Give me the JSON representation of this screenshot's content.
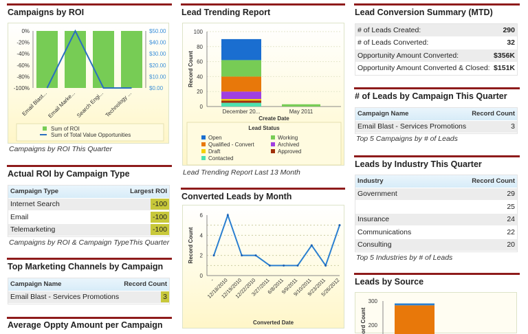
{
  "col1": {
    "roi_title": "Campaigns by ROI",
    "roi_caption": "Campaigns by ROI This Quarter",
    "actual_title": "Actual ROI by Campaign Type",
    "actual_table": {
      "headers": [
        "Campaign Type",
        "Largest ROI"
      ],
      "rows": [
        [
          "Internet Search",
          "-100"
        ],
        [
          "Email",
          "-100"
        ],
        [
          "Telemarketing",
          "-100"
        ]
      ]
    },
    "actual_caption": "Campaigns by ROI & Campaign TypeThis Quarter",
    "channels_title": "Top Marketing Channels by Campaign",
    "channels_table": {
      "headers": [
        "Campaign Name",
        "Record Count"
      ],
      "rows": [
        [
          "Email Blast - Services Promotions",
          "3"
        ]
      ]
    },
    "avg_title": "Average Oppty Amount per Campaign"
  },
  "col2": {
    "trend_title": "Lead Trending Report",
    "trend_caption": "Lead Trending Report Last 13 Month",
    "converted_title": "Converted Leads by Month"
  },
  "col3": {
    "summary_title": "Lead Conversion Summary (MTD)",
    "summary_rows": [
      [
        "# of Leads Created:",
        "290"
      ],
      [
        "# of Leads Converted:",
        "32"
      ],
      [
        "Opportunity Amount Converted:",
        "$356K"
      ],
      [
        "Opportunity Amount Converted & Closed:",
        "$151K"
      ]
    ],
    "campaign_title": "# of Leads by Campaign This Quarter",
    "campaign_table": {
      "headers": [
        "Campaign Name",
        "Record Count"
      ],
      "rows": [
        [
          "Email Blast - Services Promotions",
          "3"
        ]
      ]
    },
    "campaign_caption": "Top 5 Campaigns by # of Leads",
    "industry_title": "Leads by Industry This Quarter",
    "industry_table": {
      "headers": [
        "Industry",
        "Record Count"
      ],
      "rows": [
        [
          "Government",
          "29"
        ],
        [
          "",
          "25"
        ],
        [
          "Insurance",
          "24"
        ],
        [
          "Communications",
          "22"
        ],
        [
          "Consulting",
          "20"
        ]
      ]
    },
    "industry_caption": "Top 5 Industries by # of Leads",
    "source_title": "Leads by Source"
  },
  "colors": {
    "rule": "#8e1b1b",
    "green": "#77cc55",
    "blue": "#2a7fd0",
    "orange": "#e8780a"
  },
  "chart_data": [
    {
      "type": "bar",
      "title": "Campaigns by ROI",
      "categories": [
        "Email Blast...",
        "Email Marke...",
        "Search Engi...",
        "Technology ..."
      ],
      "series": [
        {
          "name": "Sum of ROI",
          "kind": "bar",
          "values": [
            -100,
            -100,
            -100,
            -100
          ],
          "color": "#77cc55"
        },
        {
          "name": "Sum of Total Value Opportunities",
          "kind": "line",
          "axis": "right",
          "values": [
            0,
            50,
            0,
            0
          ],
          "color": "#2a6fc0"
        }
      ],
      "ylim": [
        -100,
        0
      ],
      "yticks": [
        "0%",
        "-20%",
        "-40%",
        "-60%",
        "-80%",
        "-100%"
      ],
      "y2lim": [
        0,
        50
      ],
      "y2ticks": [
        "$50.00",
        "$40.00",
        "$30.00",
        "$20.00",
        "$10.00",
        "$0.00"
      ],
      "legend": "bottom"
    },
    {
      "type": "bar",
      "title": "Lead Trending Report",
      "stacked": true,
      "categories": [
        "December 20...",
        "May 2011"
      ],
      "xlabel": "Create Date",
      "ylabel": "Record Count",
      "ylim": [
        0,
        100
      ],
      "yticks": [
        0,
        20,
        40,
        60,
        80,
        100
      ],
      "legend_title": "Lead Status",
      "series": [
        {
          "name": "Contacted",
          "values": [
            5,
            0
          ],
          "color": "#4ee0b0"
        },
        {
          "name": "Approved",
          "values": [
            3,
            0
          ],
          "color": "#a0300a"
        },
        {
          "name": "Draft",
          "values": [
            2,
            0
          ],
          "color": "#f5d000"
        },
        {
          "name": "Archived",
          "values": [
            10,
            0
          ],
          "color": "#a040e0"
        },
        {
          "name": "Qualified - Convert",
          "values": [
            20,
            0
          ],
          "color": "#e8780a"
        },
        {
          "name": "Working",
          "values": [
            22,
            3
          ],
          "color": "#77cc55"
        },
        {
          "name": "Open",
          "values": [
            28,
            0
          ],
          "color": "#1a6ed0"
        }
      ],
      "legend_order": [
        "Open",
        "Working",
        "Qualified - Convert",
        "Archived",
        "Draft",
        "Approved",
        "Contacted"
      ]
    },
    {
      "type": "line",
      "title": "Converted Leads by Month",
      "categories": [
        "-",
        "12/18/2010",
        "12/19/2010",
        "12/22/2010",
        "3/27/2011",
        "6/8/2011",
        "9/9/2011",
        "9/10/2011",
        "9/23/2011",
        "5/26/2012"
      ],
      "values": [
        2,
        6,
        2,
        2,
        1,
        1,
        1,
        3,
        1,
        5
      ],
      "xlabel": "Converted Date",
      "ylabel": "Record Count",
      "ylim": [
        0,
        6
      ],
      "yticks": [
        0,
        2,
        4,
        6
      ]
    },
    {
      "type": "bar",
      "title": "Leads by Source",
      "stacked": true,
      "ylim": [
        0,
        300
      ],
      "yticks": [
        300,
        200
      ],
      "ylabel": "Record Count",
      "series": [
        {
          "name": "orange",
          "values": [
            282
          ],
          "color": "#e8780a"
        },
        {
          "name": "blue",
          "values": [
            8
          ],
          "color": "#2a7fd0"
        }
      ]
    }
  ]
}
